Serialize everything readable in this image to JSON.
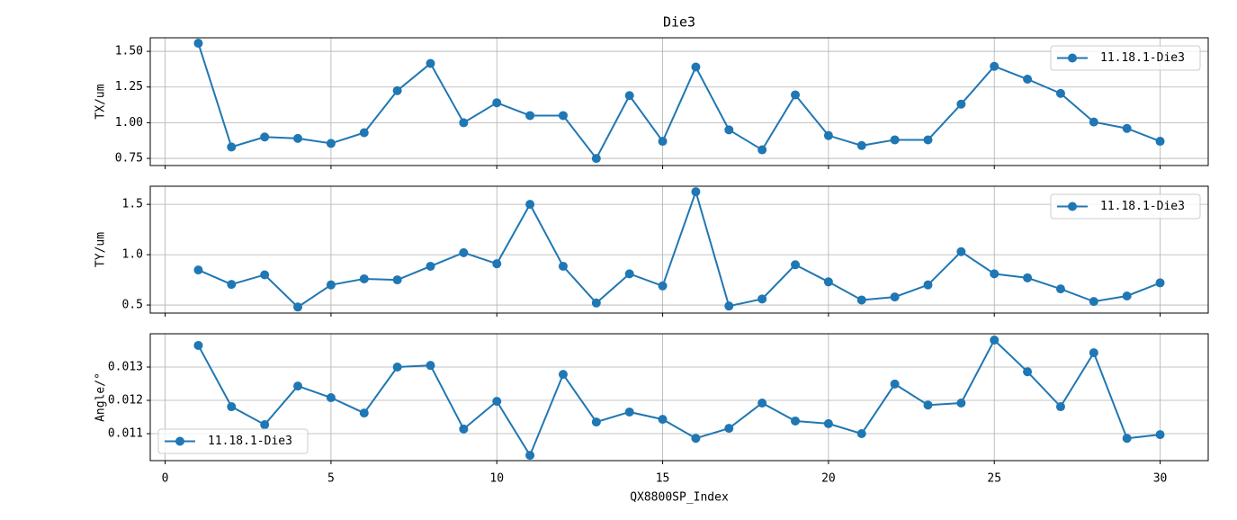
{
  "chart_data": [
    {
      "type": "line",
      "title": "Die3",
      "ylabel": "TX/um",
      "x": [
        1,
        2,
        3,
        4,
        5,
        6,
        7,
        8,
        9,
        10,
        11,
        12,
        13,
        14,
        15,
        16,
        17,
        18,
        19,
        20,
        21,
        22,
        23,
        24,
        25,
        26,
        27,
        28,
        29,
        30
      ],
      "series": [
        {
          "name": "11.18.1-Die3",
          "color": "#1f77b4",
          "values": [
            1.557,
            0.83,
            0.9,
            0.89,
            0.855,
            0.93,
            1.225,
            1.415,
            1.0,
            1.14,
            1.05,
            1.05,
            0.75,
            1.19,
            0.87,
            1.39,
            0.95,
            0.81,
            1.195,
            0.91,
            0.84,
            0.88,
            0.88,
            1.13,
            1.395,
            1.305,
            1.205,
            1.005,
            0.96,
            0.87
          ]
        }
      ],
      "xlim": [
        -0.45,
        31.45
      ],
      "xticks": [
        0,
        5,
        10,
        15,
        20,
        25,
        30
      ],
      "ylim": [
        0.7,
        1.595
      ],
      "yticks": [
        0.75,
        {
          "value": 1,
          "label": "1.00"
        },
        1.25,
        {
          "value": 1.5,
          "label": "1.50"
        }
      ],
      "grid": true,
      "legend": "upper right"
    },
    {
      "type": "line",
      "ylabel": "TY/um",
      "x": [
        1,
        2,
        3,
        4,
        5,
        6,
        7,
        8,
        9,
        10,
        11,
        12,
        13,
        14,
        15,
        16,
        17,
        18,
        19,
        20,
        21,
        22,
        23,
        24,
        25,
        26,
        27,
        28,
        29,
        30
      ],
      "series": [
        {
          "name": "11.18.1-Die3",
          "color": "#1f77b4",
          "values": [
            0.848,
            0.705,
            0.8,
            0.48,
            0.7,
            0.76,
            0.75,
            0.885,
            1.02,
            0.91,
            1.5,
            0.885,
            0.52,
            0.81,
            0.69,
            1.625,
            0.49,
            0.56,
            0.9,
            0.73,
            0.55,
            0.58,
            0.7,
            1.03,
            0.81,
            0.77,
            0.66,
            0.535,
            0.59,
            0.72
          ]
        }
      ],
      "xlim": [
        -0.45,
        31.45
      ],
      "xticks": [
        0,
        5,
        10,
        15,
        20,
        25,
        30
      ],
      "ylim": [
        0.42,
        1.68
      ],
      "yticks": [
        {
          "value": 0.5,
          "label": "0.5"
        },
        {
          "value": 1,
          "label": "1.0"
        },
        1.5
      ],
      "grid": true,
      "legend": "upper right"
    },
    {
      "type": "line",
      "ylabel": "Angle/°",
      "xlabel": "QX8800SP_Index",
      "x": [
        1,
        2,
        3,
        4,
        5,
        6,
        7,
        8,
        9,
        10,
        11,
        12,
        13,
        14,
        15,
        16,
        17,
        18,
        19,
        20,
        21,
        22,
        23,
        24,
        25,
        26,
        27,
        28,
        29,
        30
      ],
      "series": [
        {
          "name": "11.18.1-Die3",
          "color": "#1f77b4",
          "values": [
            0.01365,
            0.01181,
            0.01127,
            0.01243,
            0.01208,
            0.01162,
            0.013,
            0.01305,
            0.01114,
            0.01197,
            0.01035,
            0.01278,
            0.01135,
            0.01165,
            0.01143,
            0.01086,
            0.01116,
            0.01192,
            0.01138,
            0.0113,
            0.011,
            0.01249,
            0.01186,
            0.01192,
            0.01381,
            0.01286,
            0.01181,
            0.01343,
            0.01086,
            0.01097
          ]
        }
      ],
      "xlim": [
        -0.45,
        31.45
      ],
      "xticks": [
        0,
        5,
        10,
        15,
        20,
        25,
        30
      ],
      "ylim": [
        0.01019,
        0.014
      ],
      "yticks": [
        0.011,
        0.012,
        0.013
      ],
      "grid": true,
      "legend": "lower left"
    }
  ]
}
